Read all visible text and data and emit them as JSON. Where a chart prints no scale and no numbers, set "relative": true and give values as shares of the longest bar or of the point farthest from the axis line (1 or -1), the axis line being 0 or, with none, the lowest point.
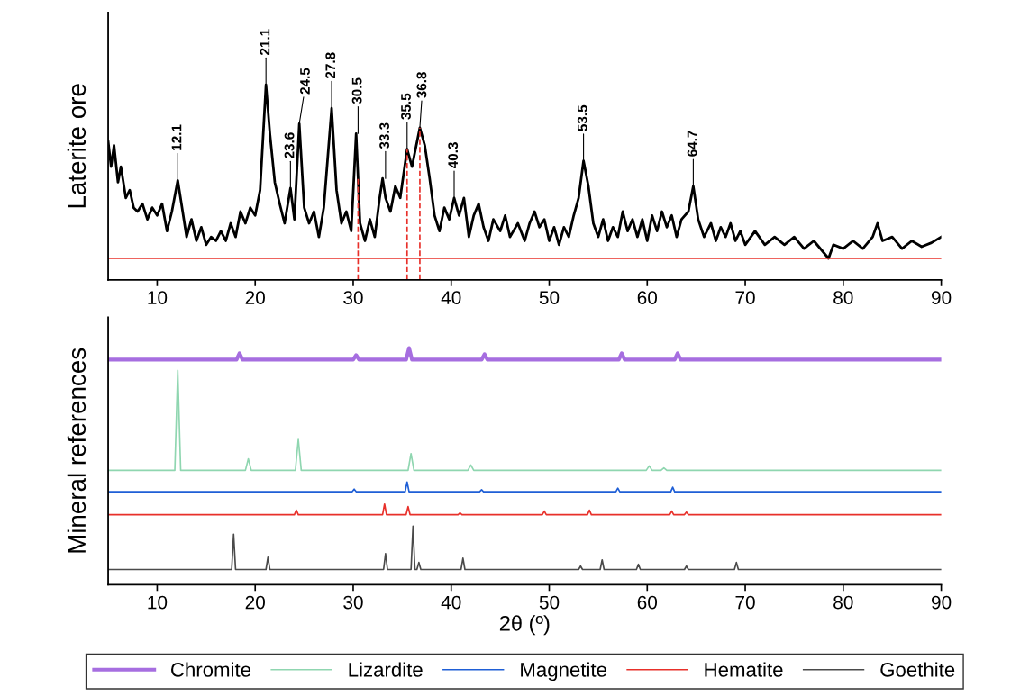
{
  "chart_data": [
    {
      "type": "line",
      "ylabel": "Laterite ore",
      "relative": true,
      "xlim": [
        5,
        90
      ],
      "xticks": [
        10,
        20,
        30,
        40,
        50,
        60,
        70,
        80,
        90
      ],
      "grid": false,
      "line_style": "solid",
      "marker": "none",
      "series": [
        {
          "color": "#000000",
          "x": [
            5.0,
            5.3,
            5.6,
            6.0,
            6.3,
            6.8,
            7.2,
            7.6,
            8.0,
            8.5,
            9.0,
            9.5,
            10.0,
            10.5,
            11.0,
            11.5,
            12.1,
            12.6,
            13.0,
            13.5,
            14.0,
            14.5,
            15.0,
            15.5,
            16.0,
            16.5,
            17.0,
            17.5,
            18.0,
            18.5,
            19.0,
            19.5,
            20.0,
            20.5,
            21.1,
            21.5,
            22.0,
            22.5,
            23.0,
            23.6,
            24.0,
            24.5,
            25.0,
            25.5,
            26.0,
            26.5,
            27.0,
            27.8,
            28.3,
            28.8,
            29.3,
            29.8,
            30.3,
            30.7,
            31.2,
            31.7,
            32.2,
            32.7,
            33.0,
            33.3,
            33.8,
            34.3,
            34.8,
            35.5,
            36.0,
            36.8,
            37.3,
            37.8,
            38.3,
            38.8,
            39.3,
            39.8,
            40.3,
            40.8,
            41.3,
            41.8,
            42.3,
            42.8,
            43.3,
            43.8,
            44.3,
            45.0,
            45.5,
            46.0,
            46.8,
            47.5,
            48.0,
            48.5,
            49.0,
            49.5,
            50.0,
            50.5,
            51.0,
            51.5,
            52.0,
            52.5,
            53.0,
            53.5,
            54.0,
            54.5,
            55.0,
            55.5,
            56.0,
            56.5,
            57.0,
            57.5,
            58.0,
            58.5,
            59.0,
            59.5,
            60.0,
            60.5,
            61.0,
            61.5,
            62.0,
            62.5,
            63.0,
            63.5,
            64.2,
            64.7,
            65.2,
            65.8,
            66.5,
            67.0,
            67.5,
            68.0,
            68.5,
            69.0,
            69.5,
            70.0,
            71.0,
            72.0,
            73.0,
            74.0,
            75.0,
            76.0,
            77.0,
            78.0,
            78.5,
            79.0,
            80.0,
            81.0,
            82.0,
            83.0,
            83.5,
            84.0,
            85.0,
            86.0,
            87.0,
            88.0,
            89.0,
            90.0
          ],
          "values": [
            0.71,
            0.58,
            0.69,
            0.5,
            0.58,
            0.42,
            0.46,
            0.37,
            0.35,
            0.39,
            0.31,
            0.37,
            0.33,
            0.39,
            0.25,
            0.35,
            0.51,
            0.35,
            0.22,
            0.31,
            0.2,
            0.27,
            0.18,
            0.22,
            0.2,
            0.25,
            0.2,
            0.29,
            0.22,
            0.35,
            0.29,
            0.37,
            0.33,
            0.46,
            1.0,
            0.75,
            0.5,
            0.39,
            0.29,
            0.47,
            0.31,
            0.8,
            0.37,
            0.29,
            0.35,
            0.22,
            0.37,
            0.88,
            0.46,
            0.29,
            0.35,
            0.25,
            0.75,
            0.29,
            0.2,
            0.31,
            0.22,
            0.42,
            0.52,
            0.42,
            0.35,
            0.48,
            0.42,
            0.67,
            0.58,
            0.78,
            0.69,
            0.52,
            0.33,
            0.25,
            0.37,
            0.31,
            0.42,
            0.33,
            0.42,
            0.22,
            0.33,
            0.39,
            0.27,
            0.2,
            0.31,
            0.25,
            0.33,
            0.22,
            0.29,
            0.2,
            0.29,
            0.35,
            0.27,
            0.31,
            0.2,
            0.27,
            0.18,
            0.27,
            0.22,
            0.33,
            0.42,
            0.61,
            0.48,
            0.29,
            0.22,
            0.31,
            0.2,
            0.27,
            0.22,
            0.35,
            0.25,
            0.31,
            0.22,
            0.31,
            0.2,
            0.33,
            0.25,
            0.35,
            0.27,
            0.33,
            0.22,
            0.31,
            0.35,
            0.48,
            0.31,
            0.22,
            0.29,
            0.2,
            0.27,
            0.22,
            0.29,
            0.2,
            0.25,
            0.18,
            0.25,
            0.18,
            0.22,
            0.18,
            0.22,
            0.16,
            0.2,
            0.14,
            0.11,
            0.18,
            0.16,
            0.2,
            0.16,
            0.22,
            0.29,
            0.2,
            0.22,
            0.16,
            0.2,
            0.17,
            0.19,
            0.22
          ]
        }
      ],
      "ref_lines": [
        {
          "axis": "y",
          "value": 0.11,
          "color": "#e8302a",
          "line_style": "solid"
        },
        {
          "axis": "x",
          "value": 30.5,
          "color": "#e8302a",
          "line_style": "dashed"
        },
        {
          "axis": "x",
          "value": 35.5,
          "color": "#e8302a",
          "line_style": "dashed"
        },
        {
          "axis": "x",
          "value": 36.8,
          "color": "#e8302a",
          "line_style": "dashed"
        }
      ],
      "annotations": [
        {
          "text": "12.1",
          "x": 12.1,
          "y": 0.51
        },
        {
          "text": "21.1",
          "x": 21.1,
          "y": 1.0
        },
        {
          "text": "23.6",
          "x": 23.6,
          "y": 0.47
        },
        {
          "text": "24.5",
          "x": 24.5,
          "y": 0.8
        },
        {
          "text": "27.8",
          "x": 27.8,
          "y": 0.88
        },
        {
          "text": "30.5",
          "x": 30.5,
          "y": 0.75
        },
        {
          "text": "33.3",
          "x": 33.3,
          "y": 0.52
        },
        {
          "text": "35.5",
          "x": 35.5,
          "y": 0.67
        },
        {
          "text": "36.8",
          "x": 36.8,
          "y": 0.78
        },
        {
          "text": "40.3",
          "x": 40.3,
          "y": 0.42
        },
        {
          "text": "53.5",
          "x": 53.5,
          "y": 0.61
        },
        {
          "text": "64.7",
          "x": 64.7,
          "y": 0.48
        }
      ]
    },
    {
      "type": "line",
      "ylabel": "Mineral references",
      "xlabel": "2θ (º)",
      "relative": true,
      "xlim": [
        5,
        90
      ],
      "xticks": [
        10,
        20,
        30,
        40,
        50,
        60,
        70,
        80,
        90
      ],
      "grid": false,
      "legend": "bottom",
      "line_style": "solid",
      "marker": "none",
      "series": [
        {
          "name": "Chromite",
          "color": "#a66ee0",
          "x": [
            5,
            18.1,
            18.4,
            18.7,
            30.0,
            30.3,
            30.6,
            35.4,
            35.7,
            36.0,
            43.1,
            43.4,
            43.7,
            57.1,
            57.4,
            57.7,
            62.8,
            63.1,
            63.4,
            90
          ],
          "values": [
            0.951,
            0.951,
            0.978,
            0.951,
            0.951,
            0.97,
            0.951,
            0.951,
            1.0,
            0.951,
            0.951,
            0.974,
            0.951,
            0.951,
            0.978,
            0.951,
            0.951,
            0.978,
            0.951,
            0.951
          ]
        },
        {
          "name": "Lizardite",
          "color": "#8fd6b0",
          "x": [
            5,
            11.8,
            12.1,
            12.4,
            19.0,
            19.3,
            19.6,
            24.1,
            24.4,
            24.7,
            35.6,
            35.9,
            36.2,
            41.7,
            42.0,
            42.3,
            59.9,
            60.2,
            60.5,
            61.4,
            61.7,
            62.0,
            90
          ],
          "values": [
            0.483,
            0.483,
            0.906,
            0.483,
            0.483,
            0.532,
            0.483,
            0.483,
            0.614,
            0.483,
            0.483,
            0.554,
            0.483,
            0.483,
            0.506,
            0.483,
            0.483,
            0.502,
            0.483,
            0.483,
            0.494,
            0.483,
            0.483
          ]
        },
        {
          "name": "Magnetite",
          "color": "#1f5fd6",
          "x": [
            5,
            29.9,
            30.1,
            30.3,
            35.3,
            35.5,
            35.7,
            42.9,
            43.1,
            43.3,
            56.8,
            57.0,
            57.2,
            62.4,
            62.6,
            62.8,
            90
          ],
          "values": [
            0.393,
            0.393,
            0.404,
            0.393,
            0.393,
            0.434,
            0.393,
            0.393,
            0.401,
            0.393,
            0.393,
            0.408,
            0.393,
            0.393,
            0.412,
            0.393,
            0.393
          ]
        },
        {
          "name": "Hematite",
          "color": "#e8302a",
          "x": [
            5,
            24.0,
            24.2,
            24.4,
            33.0,
            33.2,
            33.4,
            35.4,
            35.6,
            35.8,
            40.7,
            40.9,
            41.1,
            49.3,
            49.5,
            49.7,
            53.9,
            54.1,
            54.3,
            62.3,
            62.5,
            62.7,
            63.8,
            64.0,
            64.2,
            90
          ],
          "values": [
            0.296,
            0.296,
            0.315,
            0.296,
            0.296,
            0.341,
            0.296,
            0.296,
            0.33,
            0.296,
            0.296,
            0.303,
            0.296,
            0.296,
            0.311,
            0.296,
            0.296,
            0.315,
            0.296,
            0.296,
            0.311,
            0.296,
            0.296,
            0.307,
            0.296,
            0.296
          ]
        },
        {
          "name": "Goethite",
          "color": "#4a4a4a",
          "x": [
            5,
            17.6,
            17.8,
            18.0,
            21.1,
            21.3,
            21.5,
            33.1,
            33.3,
            33.5,
            35.9,
            36.1,
            36.3,
            36.5,
            36.7,
            36.9,
            41.0,
            41.2,
            41.4,
            53.0,
            53.2,
            53.4,
            55.2,
            55.4,
            55.6,
            58.9,
            59.1,
            59.3,
            63.8,
            64.0,
            64.2,
            68.9,
            69.1,
            69.3,
            90
          ],
          "values": [
            0.064,
            0.064,
            0.213,
            0.064,
            0.064,
            0.116,
            0.064,
            0.064,
            0.131,
            0.064,
            0.064,
            0.247,
            0.064,
            0.064,
            0.094,
            0.064,
            0.064,
            0.112,
            0.064,
            0.064,
            0.079,
            0.064,
            0.064,
            0.105,
            0.064,
            0.064,
            0.086,
            0.064,
            0.064,
            0.079,
            0.064,
            0.064,
            0.094,
            0.064,
            0.064
          ]
        }
      ]
    }
  ]
}
